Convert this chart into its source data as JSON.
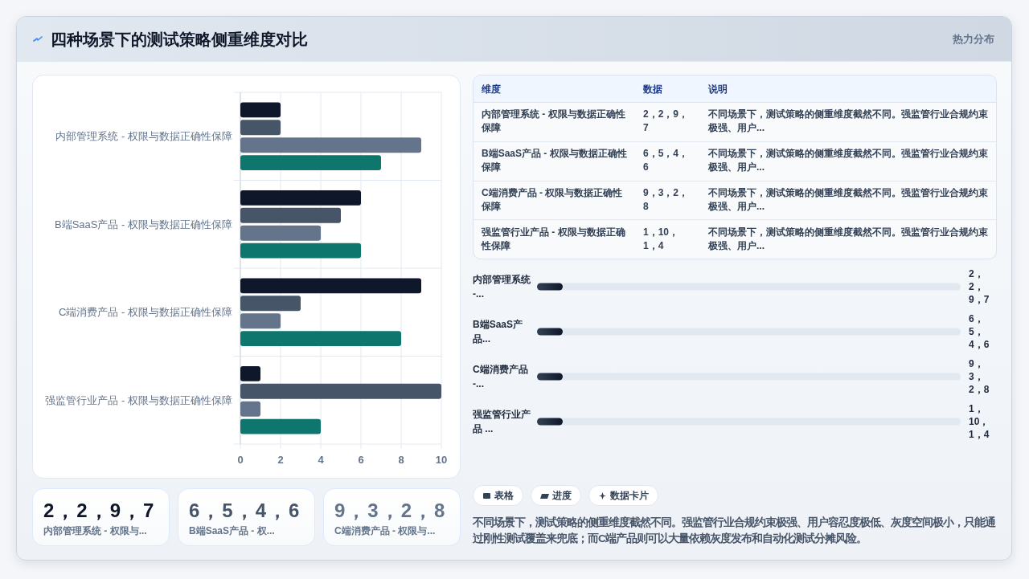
{
  "chart_data": [
    {
      "type": "other",
      "title": "四种场景下的测试策略侧重维度对比",
      "subtitle": "热力分布"
    },
    {
      "type": "bar",
      "orientation": "horizontal",
      "categories": [
        "内部管理系统 - 权限与数据正确性保障",
        "B端SaaS产品 - 权限与数据正确性保障",
        "C端消费产品 - 权限与数据正确性保障",
        "强监管行业产品 - 权限与数据正确性保障"
      ],
      "series": [
        {
          "color": "#0f172a",
          "values": [
            2,
            6,
            9,
            1
          ]
        },
        {
          "color": "#475569",
          "values": [
            2,
            5,
            3,
            10
          ]
        },
        {
          "color": "#64748b",
          "values": [
            9,
            4,
            2,
            1
          ]
        },
        {
          "color": "#0f766e",
          "values": [
            7,
            6,
            8,
            4
          ]
        }
      ],
      "xlim": [
        0,
        10
      ],
      "xticks": [
        0,
        2,
        4,
        6,
        8,
        10
      ],
      "grid": true
    },
    {
      "type": "other",
      "categories": [
        "维度",
        "数据",
        "说明"
      ],
      "cell_labels": [
        [
          "内部管理系统 - 权限与数据正确性保障",
          "2，2，9，7",
          "不同场景下，测试策略的侧重维度截然不同。强监管行业合规约束极强、用户..."
        ],
        [
          "B端SaaS产品 - 权限与数据正确性保障",
          "6，5，4，6",
          "不同场景下，测试策略的侧重维度截然不同。强监管行业合规约束极强、用户..."
        ],
        [
          "C端消费产品 - 权限与数据正确性保障",
          "9，3，2，8",
          "不同场景下，测试策略的侧重维度截然不同。强监管行业合规约束极强、用户..."
        ],
        [
          "强监管行业产品 - 权限与数据正确性保障",
          "1，10，1，4",
          "不同场景下，测试策略的侧重维度截然不同。强监管行业合规约束极强、用户..."
        ]
      ]
    },
    {
      "type": "other",
      "categories": [
        "内部管理系统 -...",
        "B端SaaS产品...",
        "C端消费产品 -...",
        "强监管行业产品 ..."
      ],
      "value_labels": [
        "2，2，9，7",
        "6，5，4，6",
        "9，3，2，8",
        "1，10，1，4"
      ]
    },
    {
      "type": "other",
      "categories": [
        "内部管理系统 - 权限与...",
        "B端SaaS产品 - 权...",
        "C端消费产品 - 权限与..."
      ],
      "value_labels": [
        "2，2，9，7",
        "6，5，4，6",
        "9，3，2，8"
      ]
    },
    {
      "type": "other",
      "categories": [
        "表格",
        "进度",
        "数据卡片"
      ],
      "annotations": [
        "不同场景下，测试策略的侧重维度截然不同。强监管行业合规约束极强、用户容忍度极低、灰度空间极小，只能通过刚性测试覆盖来兜底；而C端产品则可以大量依赖灰度发布和自动化测试分摊风险。"
      ]
    }
  ]
}
